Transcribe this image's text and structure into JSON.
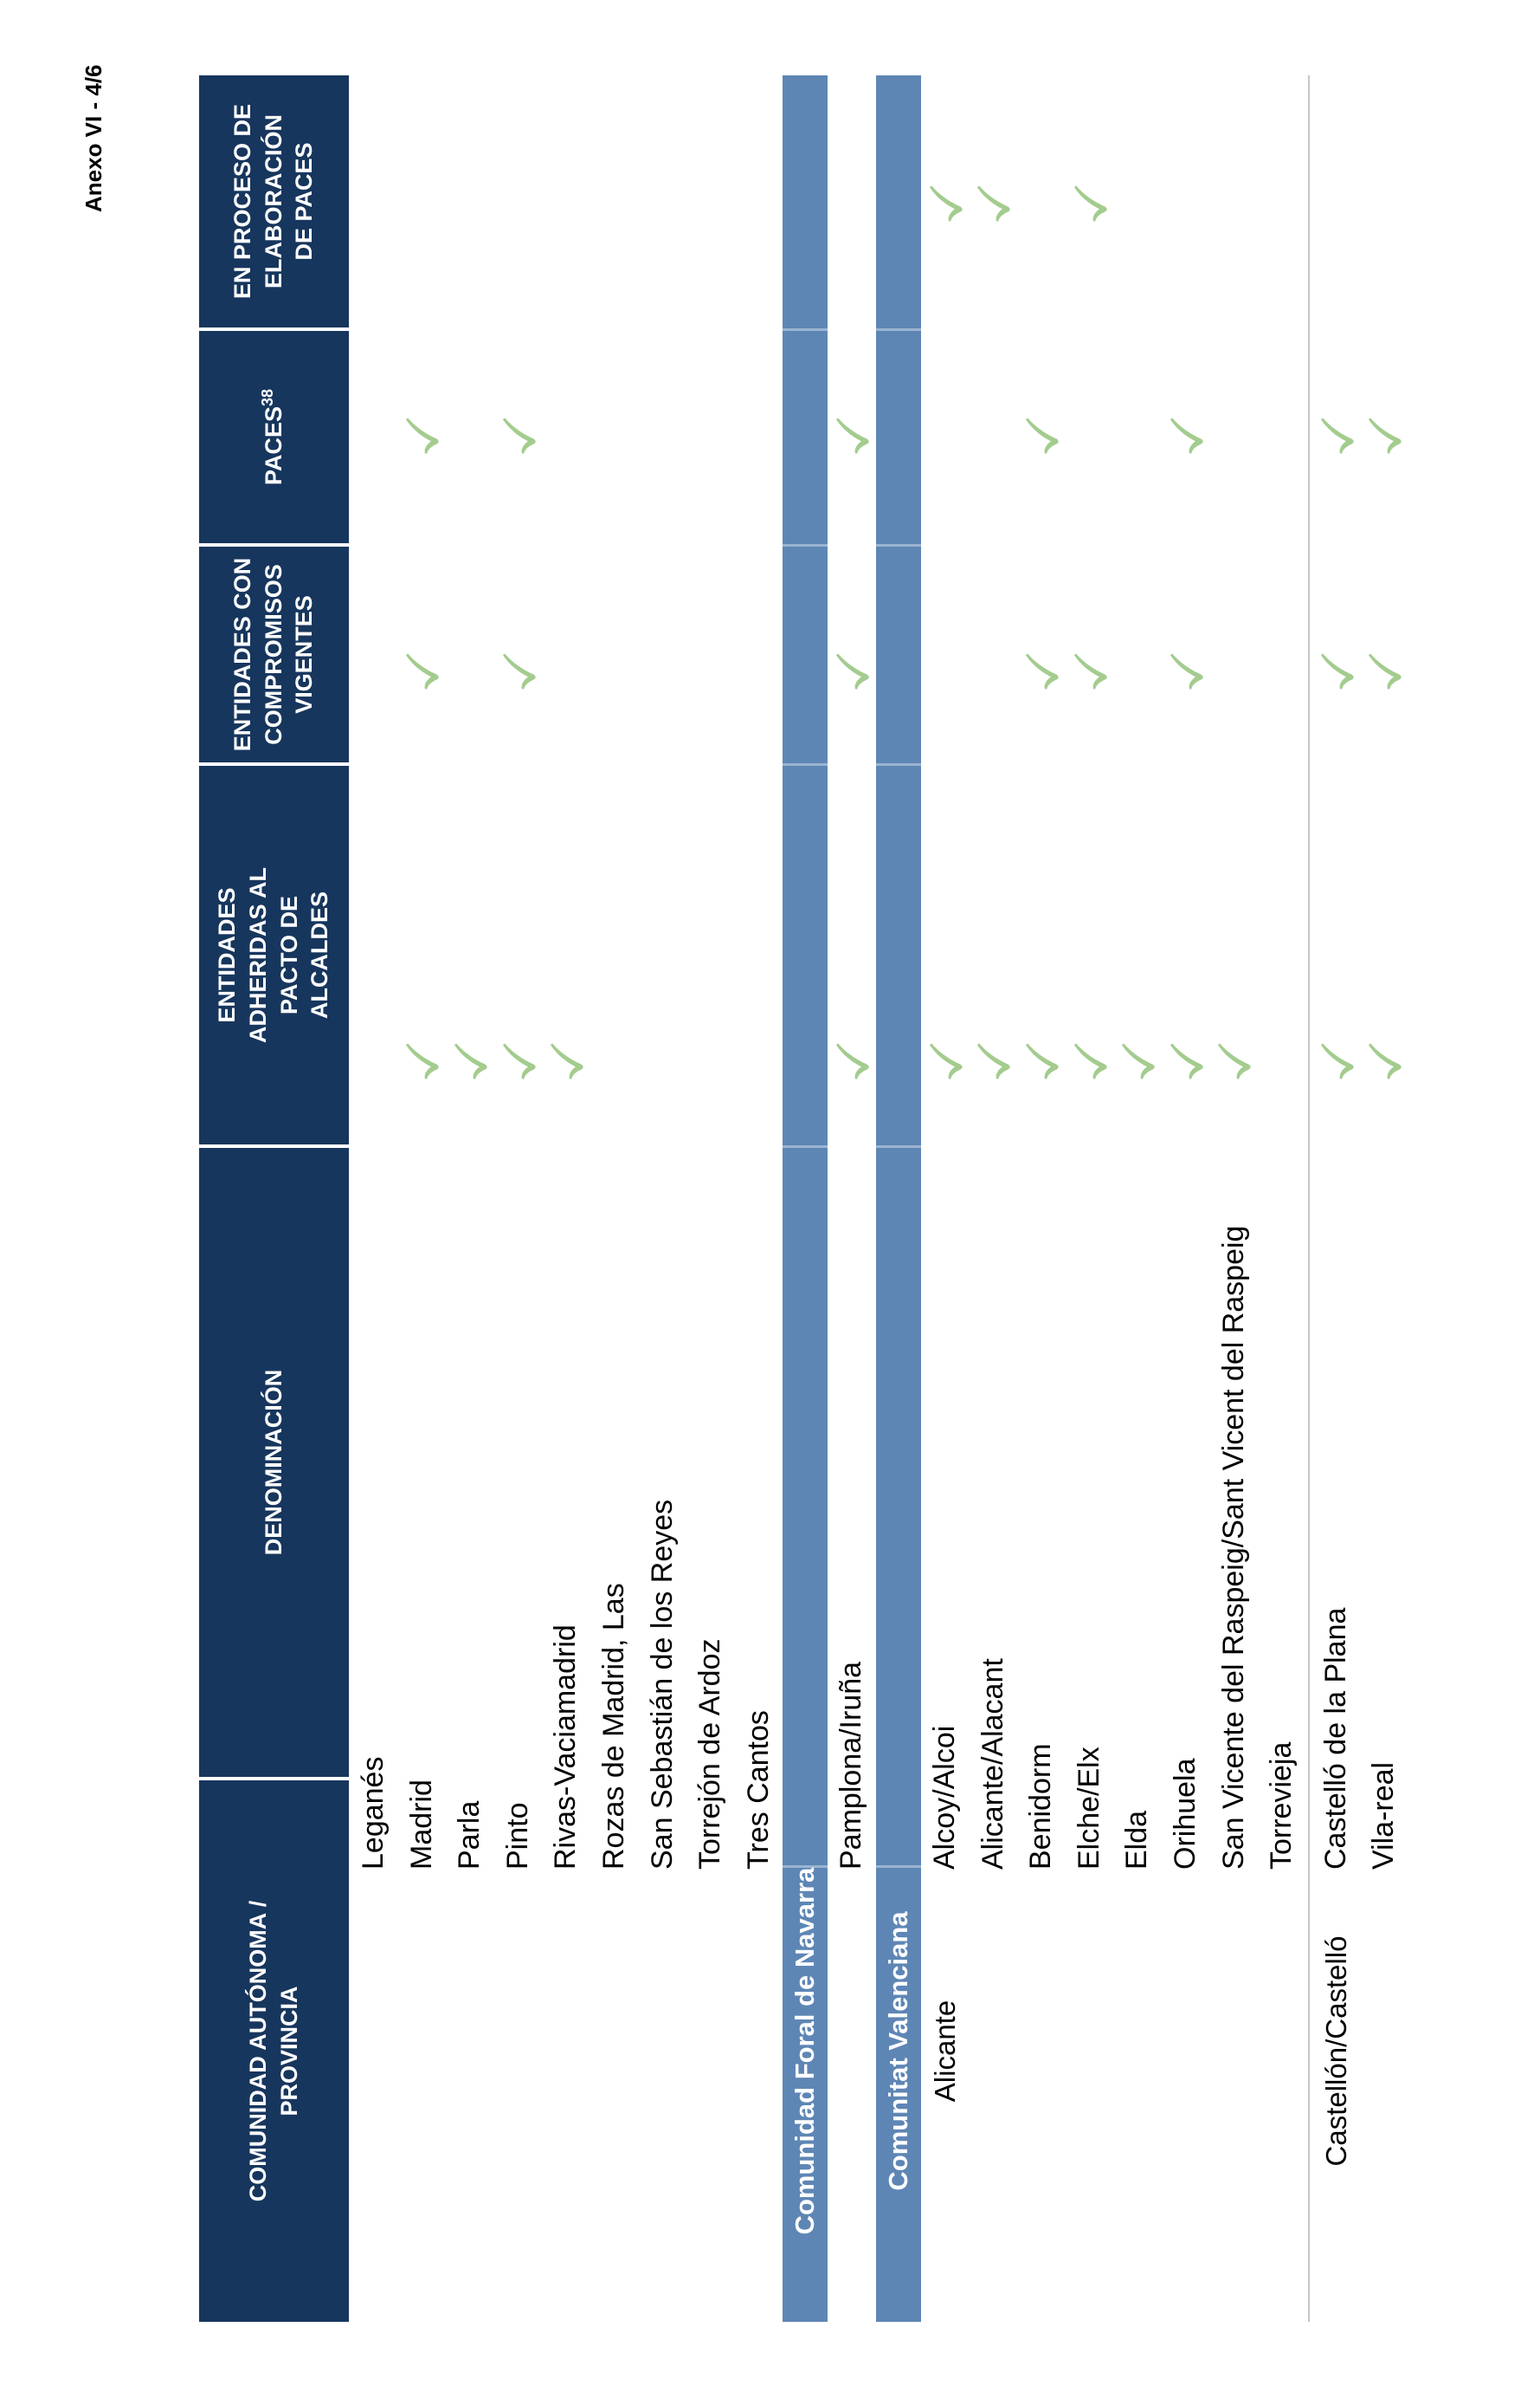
{
  "page_label": "Anexo VI - 4/6",
  "colors": {
    "header_navy": "#17365D",
    "section_blue": "#5E86B5",
    "check_green": "#A3CC8E",
    "divider_gray": "#C6C6C6"
  },
  "table": {
    "columns": [
      {
        "id": "comunidad",
        "label": "COMUNIDAD AUTÓNOMA /\nPROVINCIA"
      },
      {
        "id": "denominacion",
        "label": "DENOMINACIÓN"
      },
      {
        "id": "adheridas",
        "label": "ENTIDADES\nADHERIDAS AL\nPACTO DE\nALCALDES"
      },
      {
        "id": "compromisos",
        "label": "ENTIDADES CON\nCOMPROMISOS\nVIGENTES"
      },
      {
        "id": "paces",
        "label": "PACES",
        "superscript": "38"
      },
      {
        "id": "proceso",
        "label": "EN PROCESO DE\nELABORACIÓN\nDE PACES"
      }
    ],
    "check_icon": "check-icon",
    "rows": [
      {
        "type": "municipality",
        "denominacion": "Leganés",
        "checks": []
      },
      {
        "type": "municipality",
        "denominacion": "Madrid",
        "checks": [
          "adheridas",
          "compromisos",
          "paces"
        ]
      },
      {
        "type": "municipality",
        "denominacion": "Parla",
        "checks": [
          "adheridas"
        ]
      },
      {
        "type": "municipality",
        "denominacion": "Pinto",
        "checks": [
          "adheridas",
          "compromisos",
          "paces"
        ]
      },
      {
        "type": "municipality",
        "denominacion": "Rivas-Vaciamadrid",
        "checks": [
          "adheridas"
        ]
      },
      {
        "type": "municipality",
        "denominacion": "Rozas de Madrid, Las",
        "checks": []
      },
      {
        "type": "municipality",
        "denominacion": "San Sebastián de los Reyes",
        "checks": []
      },
      {
        "type": "municipality",
        "denominacion": "Torrejón de Ardoz",
        "checks": []
      },
      {
        "type": "municipality",
        "denominacion": "Tres Cantos",
        "checks": []
      },
      {
        "type": "section",
        "label": "Comunidad Foral de Navarra"
      },
      {
        "type": "municipality",
        "denominacion": "Pamplona/Iruña",
        "checks": [
          "adheridas",
          "compromisos",
          "paces"
        ]
      },
      {
        "type": "section",
        "label": "Comunitat Valenciana"
      },
      {
        "type": "municipality",
        "province": "Alicante",
        "denominacion": "Alcoy/Alcoi",
        "checks": [
          "adheridas",
          "proceso"
        ]
      },
      {
        "type": "municipality",
        "denominacion": "Alicante/Alacant",
        "checks": [
          "adheridas",
          "proceso"
        ]
      },
      {
        "type": "municipality",
        "denominacion": "Benidorm",
        "checks": [
          "adheridas",
          "compromisos",
          "paces"
        ]
      },
      {
        "type": "municipality",
        "denominacion": "Elche/Elx",
        "checks": [
          "adheridas",
          "compromisos",
          "proceso"
        ]
      },
      {
        "type": "municipality",
        "denominacion": "Elda",
        "checks": [
          "adheridas"
        ]
      },
      {
        "type": "municipality",
        "denominacion": "Orihuela",
        "checks": [
          "adheridas",
          "compromisos",
          "paces"
        ]
      },
      {
        "type": "municipality",
        "denominacion": "San Vicente del Raspeig/Sant Vicent del Raspeig",
        "checks": [
          "adheridas"
        ]
      },
      {
        "type": "municipality",
        "denominacion": "Torrevieja",
        "checks": [],
        "group_end": true
      },
      {
        "type": "municipality",
        "province": "Castellón/Castelló",
        "denominacion": "Castelló de la Plana",
        "checks": [
          "adheridas",
          "compromisos",
          "paces"
        ]
      },
      {
        "type": "municipality",
        "denominacion": "Vila-real",
        "checks": [
          "adheridas",
          "compromisos",
          "paces"
        ]
      }
    ]
  }
}
